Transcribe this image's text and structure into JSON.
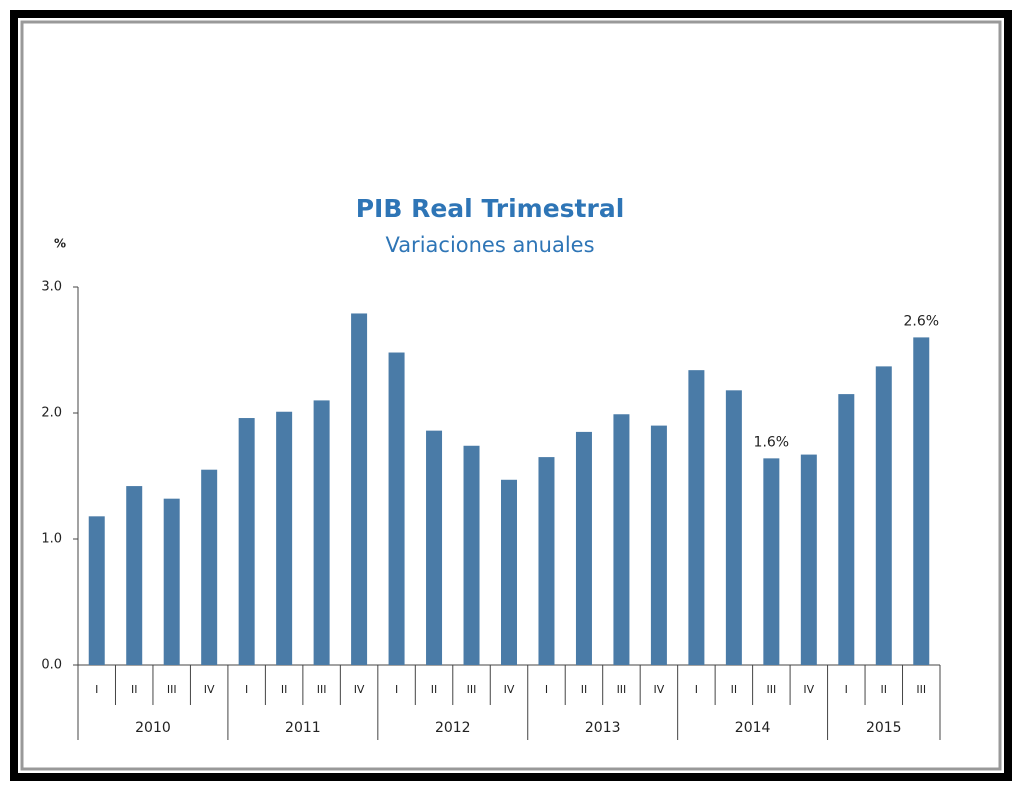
{
  "chart_data": {
    "type": "bar",
    "title": "PIB Real Trimestral",
    "subtitle": "Variaciones anuales",
    "y_label": "%",
    "year_groups": [
      {
        "label": "2010",
        "quarters": [
          "I",
          "II",
          "III",
          "IV"
        ]
      },
      {
        "label": "2011",
        "quarters": [
          "I",
          "II",
          "III",
          "IV"
        ]
      },
      {
        "label": "2012",
        "quarters": [
          "I",
          "II",
          "III",
          "IV"
        ]
      },
      {
        "label": "2013",
        "quarters": [
          "I",
          "II",
          "III",
          "IV"
        ]
      },
      {
        "label": "2014",
        "quarters": [
          "I",
          "II",
          "III",
          "IV"
        ]
      },
      {
        "label": "2015",
        "quarters": [
          "I",
          "II",
          "III"
        ]
      }
    ],
    "values": [
      1.18,
      1.42,
      1.32,
      1.55,
      1.96,
      2.01,
      2.1,
      2.79,
      2.48,
      1.86,
      1.74,
      1.47,
      1.65,
      1.85,
      1.99,
      1.9,
      2.34,
      2.18,
      1.64,
      1.67,
      2.15,
      2.37,
      2.6
    ],
    "value_labels": [
      null,
      null,
      null,
      null,
      null,
      null,
      null,
      null,
      null,
      null,
      null,
      null,
      null,
      null,
      null,
      null,
      null,
      null,
      "1.6%",
      null,
      null,
      null,
      "2.6%"
    ],
    "color": "#4a7ba7",
    "ylim": [
      0,
      3
    ],
    "yticks": [
      {
        "value": 0,
        "label": "0.0"
      },
      {
        "value": 1,
        "label": "1.0"
      },
      {
        "value": 2,
        "label": "2.0"
      },
      {
        "value": 3,
        "label": "3.0"
      }
    ],
    "grid": false
  }
}
